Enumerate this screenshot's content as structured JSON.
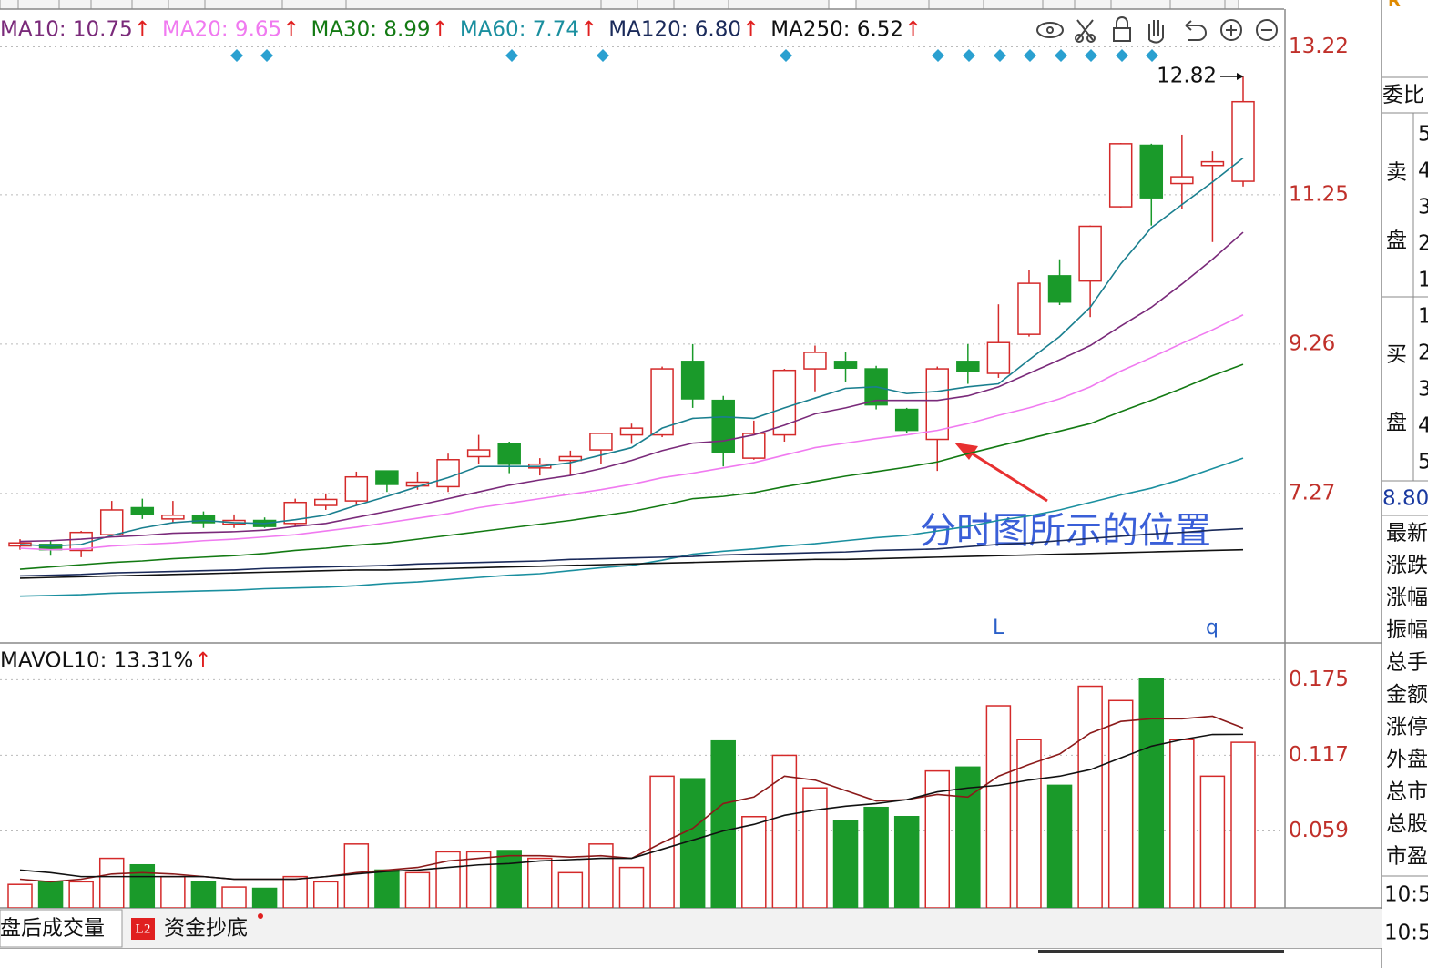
{
  "chart_data": [
    {
      "type": "candlestick",
      "ylim": [
        5.29,
        13.7
      ],
      "yticks": [
        7.27,
        9.26,
        11.25,
        13.22
      ],
      "grid": true,
      "up_color": "#d42a2a",
      "down_color": "#1a9a2a",
      "open": [
        6.57,
        6.59,
        6.51,
        6.72,
        7.08,
        6.93,
        6.98,
        6.86,
        6.91,
        6.87,
        7.11,
        7.17,
        7.57,
        7.37,
        7.36,
        7.76,
        7.93,
        7.61,
        7.71,
        7.85,
        8.05,
        8.05,
        9.03,
        8.51,
        7.74,
        8.05,
        8.93,
        9.03,
        8.93,
        8.39,
        7.99,
        9.03,
        8.87,
        9.39,
        10.17,
        10.1,
        11.09,
        11.91,
        11.4,
        11.64,
        11.43
      ],
      "high": [
        6.66,
        6.64,
        6.77,
        7.17,
        7.2,
        7.17,
        7.03,
        6.99,
        6.95,
        7.2,
        7.27,
        7.56,
        7.57,
        7.56,
        7.8,
        8.05,
        7.96,
        7.74,
        7.84,
        8.08,
        8.2,
        8.96,
        9.26,
        8.57,
        8.24,
        8.93,
        9.24,
        9.16,
        8.97,
        8.41,
        8.96,
        9.26,
        9.79,
        10.25,
        10.39,
        10.84,
        11.94,
        11.93,
        12.05,
        11.83,
        12.82
      ],
      "low": [
        6.52,
        6.44,
        6.42,
        6.69,
        6.93,
        6.88,
        6.81,
        6.81,
        6.81,
        6.83,
        7.05,
        7.11,
        7.29,
        7.32,
        7.29,
        7.66,
        7.54,
        7.51,
        7.51,
        7.66,
        7.93,
        8.02,
        8.41,
        7.63,
        7.72,
        7.96,
        8.63,
        8.75,
        8.39,
        8.08,
        7.57,
        8.73,
        8.81,
        9.36,
        9.78,
        9.62,
        11.08,
        10.84,
        11.06,
        10.62,
        11.36
      ],
      "close": [
        6.61,
        6.52,
        6.75,
        7.05,
        6.99,
        6.98,
        6.88,
        6.91,
        6.83,
        7.15,
        7.19,
        7.49,
        7.39,
        7.42,
        7.72,
        7.85,
        7.66,
        7.66,
        7.76,
        8.07,
        8.14,
        8.93,
        8.53,
        7.82,
        8.07,
        8.91,
        9.15,
        8.94,
        8.45,
        8.11,
        8.93,
        8.9,
        9.28,
        10.07,
        9.82,
        10.83,
        11.93,
        11.21,
        11.49,
        11.69,
        12.49
      ],
      "lines": [
        {
          "color": "#1a7f8f",
          "values": [
            6.59,
            6.57,
            6.59,
            6.71,
            6.81,
            6.88,
            6.91,
            6.88,
            6.87,
            6.92,
            6.98,
            7.11,
            7.23,
            7.36,
            7.48,
            7.63,
            7.63,
            7.63,
            7.68,
            7.78,
            7.88,
            8.14,
            8.27,
            8.29,
            8.27,
            8.41,
            8.54,
            8.67,
            8.69,
            8.6,
            8.63,
            8.69,
            8.73,
            9.05,
            9.36,
            9.75,
            10.33,
            10.81,
            11.12,
            11.42,
            11.74
          ]
        },
        {
          "name": "MA10: 10.75",
          "arrow": "↑",
          "color": "#7a2a7a",
          "values": [
            6.63,
            6.64,
            6.66,
            6.69,
            6.71,
            6.74,
            6.75,
            6.76,
            6.78,
            6.83,
            6.87,
            6.95,
            7.03,
            7.11,
            7.2,
            7.29,
            7.38,
            7.45,
            7.51,
            7.6,
            7.71,
            7.84,
            7.94,
            7.97,
            8.05,
            8.18,
            8.33,
            8.41,
            8.51,
            8.51,
            8.51,
            8.57,
            8.69,
            8.87,
            9.05,
            9.24,
            9.5,
            9.75,
            10.06,
            10.39,
            10.75
          ]
        },
        {
          "name": "MA20: 9.65",
          "arrow": "↑",
          "color": "#f07af0",
          "values": [
            6.54,
            6.52,
            6.53,
            6.57,
            6.59,
            6.61,
            6.64,
            6.66,
            6.69,
            6.72,
            6.77,
            6.82,
            6.88,
            6.94,
            7.0,
            7.08,
            7.14,
            7.2,
            7.26,
            7.32,
            7.39,
            7.48,
            7.54,
            7.61,
            7.68,
            7.78,
            7.88,
            7.94,
            8.0,
            8.05,
            8.11,
            8.2,
            8.31,
            8.41,
            8.53,
            8.69,
            8.9,
            9.08,
            9.27,
            9.45,
            9.65
          ]
        },
        {
          "name": "MA30: 8.99",
          "arrow": "↑",
          "color": "#137a13",
          "values": [
            6.26,
            6.29,
            6.32,
            6.35,
            6.37,
            6.4,
            6.42,
            6.44,
            6.47,
            6.51,
            6.54,
            6.58,
            6.61,
            6.66,
            6.71,
            6.76,
            6.81,
            6.86,
            6.91,
            6.97,
            7.03,
            7.11,
            7.2,
            7.23,
            7.28,
            7.36,
            7.43,
            7.5,
            7.56,
            7.62,
            7.69,
            7.8,
            7.9,
            8.0,
            8.1,
            8.2,
            8.36,
            8.51,
            8.67,
            8.84,
            8.99
          ]
        },
        {
          "name": "MA60: 7.74",
          "arrow": "↑",
          "color": "#1a8f9f",
          "values": [
            5.9,
            5.91,
            5.92,
            5.94,
            5.95,
            5.96,
            5.97,
            5.98,
            6.0,
            6.01,
            6.02,
            6.04,
            6.07,
            6.09,
            6.12,
            6.15,
            6.18,
            6.2,
            6.24,
            6.28,
            6.31,
            6.38,
            6.46,
            6.5,
            6.53,
            6.57,
            6.6,
            6.64,
            6.68,
            6.71,
            6.77,
            6.83,
            6.91,
            6.97,
            7.05,
            7.15,
            7.25,
            7.34,
            7.46,
            7.6,
            7.74
          ]
        },
        {
          "name": "MA120: 6.80",
          "arrow": "↑",
          "color": "#1a2a5a",
          "values": [
            6.17,
            6.18,
            6.19,
            6.21,
            6.22,
            6.23,
            6.24,
            6.25,
            6.27,
            6.28,
            6.29,
            6.3,
            6.31,
            6.33,
            6.34,
            6.35,
            6.36,
            6.37,
            6.39,
            6.4,
            6.41,
            6.42,
            6.43,
            6.45,
            6.46,
            6.47,
            6.48,
            6.49,
            6.51,
            6.52,
            6.53,
            6.56,
            6.59,
            6.61,
            6.64,
            6.67,
            6.7,
            6.73,
            6.75,
            6.78,
            6.8
          ]
        },
        {
          "name": "MA250: 6.52",
          "arrow": "↑",
          "color": "#111111",
          "values": [
            6.14,
            6.15,
            6.16,
            6.17,
            6.18,
            6.19,
            6.2,
            6.21,
            6.22,
            6.23,
            6.24,
            6.25,
            6.25,
            6.26,
            6.27,
            6.28,
            6.29,
            6.3,
            6.31,
            6.32,
            6.33,
            6.34,
            6.35,
            6.36,
            6.37,
            6.38,
            6.39,
            6.39,
            6.4,
            6.41,
            6.42,
            6.43,
            6.44,
            6.45,
            6.46,
            6.47,
            6.48,
            6.49,
            6.5,
            6.51,
            6.52
          ]
        }
      ],
      "annotation": "分时图所示的位置",
      "labels": [
        "L",
        "q"
      ]
    },
    {
      "type": "volume",
      "ylim": [
        0,
        0.199
      ],
      "yticks": [
        0.059,
        0.117,
        0.175
      ],
      "grid": true,
      "values": [
        0.018,
        0.02,
        0.02,
        0.038,
        0.033,
        0.024,
        0.02,
        0.016,
        0.015,
        0.024,
        0.02,
        0.049,
        0.029,
        0.027,
        0.043,
        0.043,
        0.044,
        0.038,
        0.027,
        0.049,
        0.031,
        0.101,
        0.099,
        0.128,
        0.07,
        0.117,
        0.092,
        0.067,
        0.077,
        0.07,
        0.105,
        0.108,
        0.155,
        0.129,
        0.094,
        0.17,
        0.159,
        0.176,
        0.129,
        0.101,
        0.127
      ],
      "lines": [
        {
          "color": "#8b1a1a",
          "values": [
            0.022,
            0.02,
            0.022,
            0.026,
            0.027,
            0.026,
            0.024,
            0.022,
            0.022,
            0.022,
            0.024,
            0.027,
            0.029,
            0.031,
            0.036,
            0.038,
            0.04,
            0.04,
            0.039,
            0.04,
            0.038,
            0.05,
            0.061,
            0.08,
            0.085,
            0.101,
            0.098,
            0.09,
            0.082,
            0.083,
            0.087,
            0.085,
            0.101,
            0.11,
            0.118,
            0.134,
            0.143,
            0.145,
            0.145,
            0.147,
            0.138
          ]
        },
        {
          "name": "MAVOL10: 13.31%",
          "arrow": "↑",
          "color": "#111111",
          "values": [
            0.029,
            0.027,
            0.024,
            0.024,
            0.024,
            0.024,
            0.024,
            0.022,
            0.022,
            0.022,
            0.024,
            0.026,
            0.028,
            0.029,
            0.031,
            0.033,
            0.034,
            0.036,
            0.037,
            0.038,
            0.038,
            0.045,
            0.052,
            0.059,
            0.064,
            0.071,
            0.075,
            0.078,
            0.08,
            0.083,
            0.089,
            0.092,
            0.094,
            0.098,
            0.101,
            0.106,
            0.115,
            0.124,
            0.129,
            0.133,
            0.1331
          ]
        }
      ]
    }
  ],
  "panel": {
    "top": "R",
    "ratio": "委比",
    "sell": [
      "卖",
      "盘"
    ],
    "sell_levels": [
      "5",
      "4",
      "3",
      "2",
      "1"
    ],
    "buy": [
      "买",
      "盘"
    ],
    "buy_levels": [
      "1",
      "2",
      "3",
      "4",
      "5"
    ],
    "price": "8.80",
    "fields": [
      "最新",
      "涨跌",
      "涨幅",
      "振幅",
      "总手",
      "金额",
      "涨停",
      "外盘",
      "总市",
      "总股",
      "市盈"
    ],
    "times": [
      "10:5",
      "10:5"
    ]
  },
  "tabs": {
    "badge": "L2",
    "items": [
      "盘后成交量",
      "资金抄底"
    ]
  }
}
